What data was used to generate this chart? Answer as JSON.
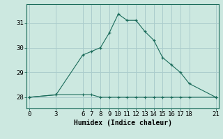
{
  "xlabel": "Humidex (Indice chaleur)",
  "bg_color": "#cce8e0",
  "grid_color": "#aacccc",
  "line_color": "#1a6b5a",
  "x_curve": [
    0,
    3,
    6,
    7,
    8,
    9,
    10,
    11,
    12,
    13,
    14,
    15,
    16,
    17,
    18,
    21
  ],
  "y_curve": [
    28.0,
    28.1,
    29.7,
    29.85,
    30.0,
    30.6,
    31.35,
    31.1,
    31.1,
    30.65,
    30.3,
    29.6,
    29.3,
    29.0,
    28.55,
    28.0
  ],
  "x_flat": [
    0,
    3,
    6,
    7,
    8,
    9,
    10,
    11,
    12,
    13,
    14,
    15,
    16,
    17,
    18,
    21
  ],
  "y_flat": [
    28.0,
    28.1,
    28.1,
    28.1,
    28.0,
    28.0,
    28.0,
    28.0,
    28.0,
    28.0,
    28.0,
    28.0,
    28.0,
    28.0,
    28.0,
    28.0
  ],
  "xticks": [
    0,
    3,
    6,
    7,
    8,
    9,
    10,
    11,
    12,
    13,
    14,
    15,
    16,
    17,
    18,
    21
  ],
  "yticks": [
    28,
    29,
    30,
    31
  ],
  "ylim": [
    27.55,
    31.75
  ],
  "xlim": [
    -0.3,
    21.3
  ],
  "axis_fontsize": 7,
  "tick_fontsize": 6.5,
  "xlabel_fontsize": 7
}
